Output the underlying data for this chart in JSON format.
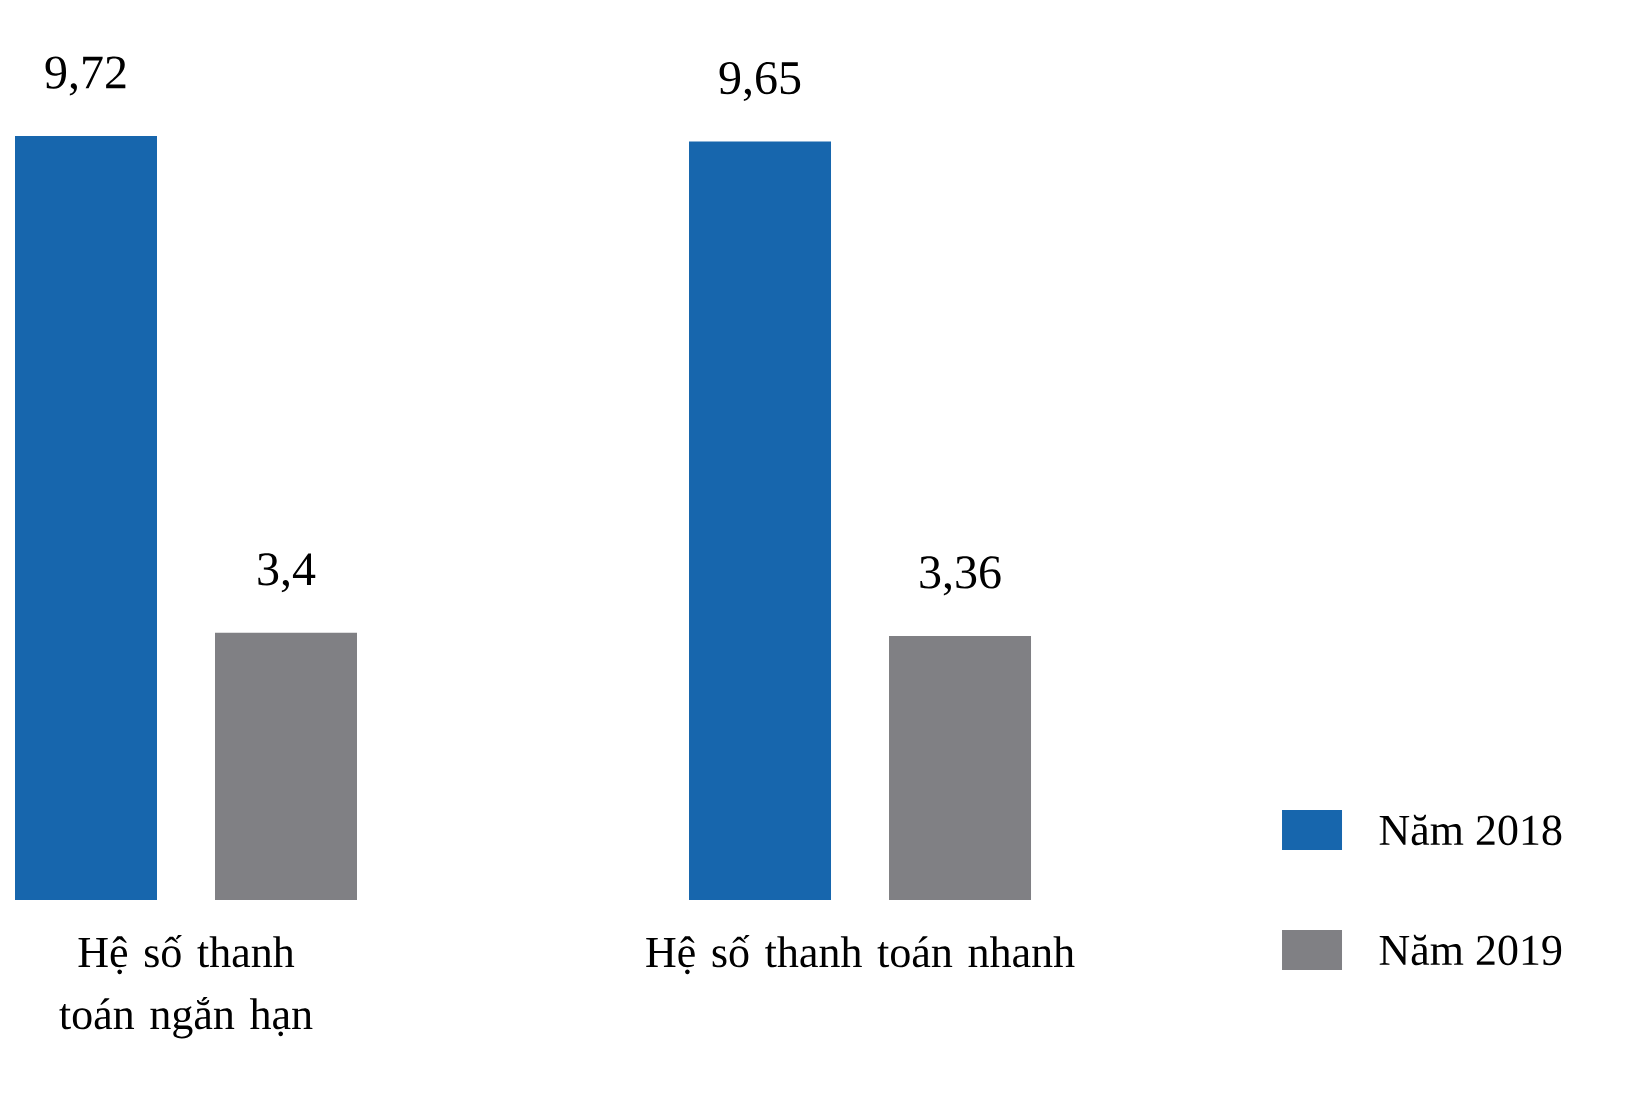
{
  "chart_data": {
    "type": "bar",
    "categories": [
      "Hệ số thanh toán ngắn hạn",
      "Hệ số thanh toán nhanh"
    ],
    "series": [
      {
        "name": "Năm 2018",
        "color": "#1766ad",
        "values": [
          9.72,
          9.65
        ],
        "value_labels": [
          "9,72",
          "9,65"
        ]
      },
      {
        "name": "Năm 2019",
        "color": "#808084",
        "values": [
          3.4,
          3.36
        ],
        "value_labels": [
          "3,4",
          "3,36"
        ]
      }
    ],
    "legend": "right"
  }
}
